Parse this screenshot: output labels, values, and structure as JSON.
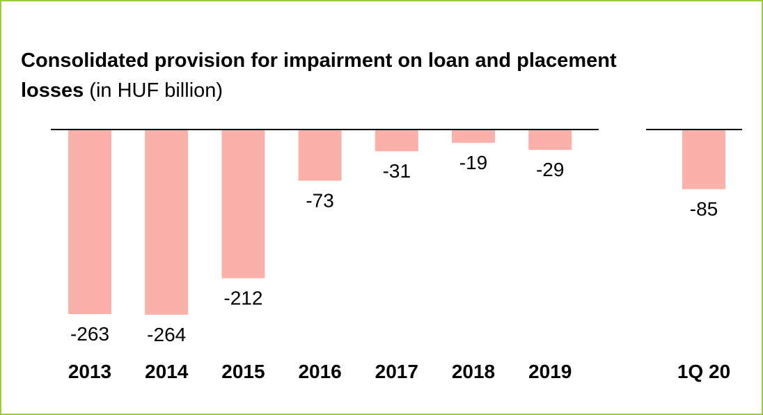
{
  "chart_data": {
    "type": "bar",
    "title": "Consolidated provision for impairment on loan and placement losses",
    "subtitle": "(in HUF billion)",
    "categories": [
      "2013",
      "2014",
      "2015",
      "2016",
      "2017",
      "2018",
      "2019",
      "1Q 20"
    ],
    "values": [
      -263,
      -264,
      -212,
      -73,
      -31,
      -19,
      -29,
      -85
    ],
    "color": "#f9b1a9"
  }
}
